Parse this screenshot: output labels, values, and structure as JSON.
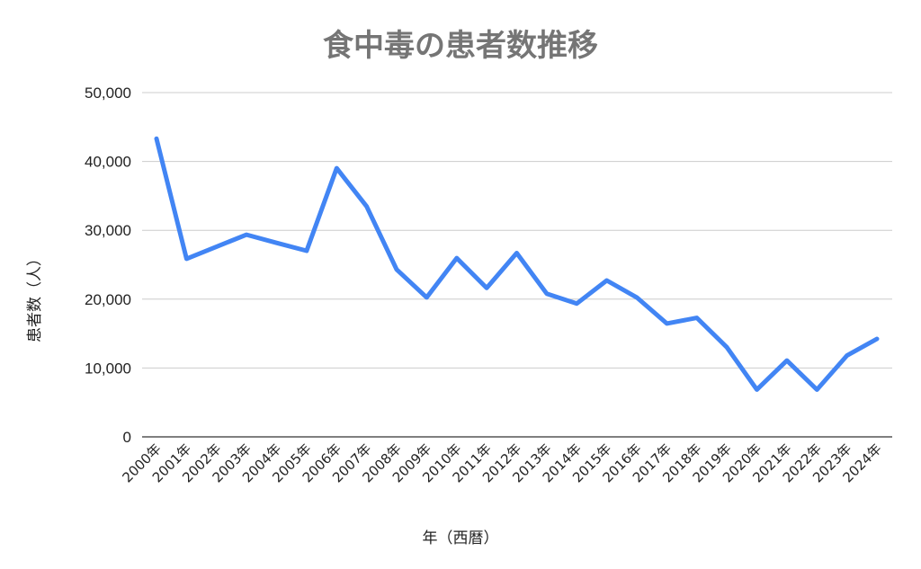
{
  "chart_data": {
    "type": "line",
    "title": "食中毒の患者数推移",
    "xlabel": "年（西暦）",
    "ylabel": "患者数（人）",
    "categories": [
      "2000年",
      "2001年",
      "2002年",
      "2003年",
      "2004年",
      "2005年",
      "2006年",
      "2007年",
      "2008年",
      "2009年",
      "2010年",
      "2011年",
      "2012年",
      "2013年",
      "2014年",
      "2015年",
      "2016年",
      "2017年",
      "2018年",
      "2019年",
      "2020年",
      "2021年",
      "2022年",
      "2023年",
      "2024年"
    ],
    "yticks": [
      "0",
      "10,000",
      "20,000",
      "30,000",
      "40,000",
      "50,000"
    ],
    "ylim": [
      0,
      50000
    ],
    "grid": true,
    "legend": "none",
    "series": [
      {
        "color": "#4285F4",
        "values": [
          43307,
          25862,
          27629,
          29355,
          28175,
          27019,
          39026,
          33477,
          24303,
          20249,
          25972,
          21616,
          26699,
          20802,
          19355,
          22718,
          20252,
          16464,
          17282,
          13018,
          6869,
          11080,
          6856,
          11803,
          14229
        ]
      }
    ]
  }
}
